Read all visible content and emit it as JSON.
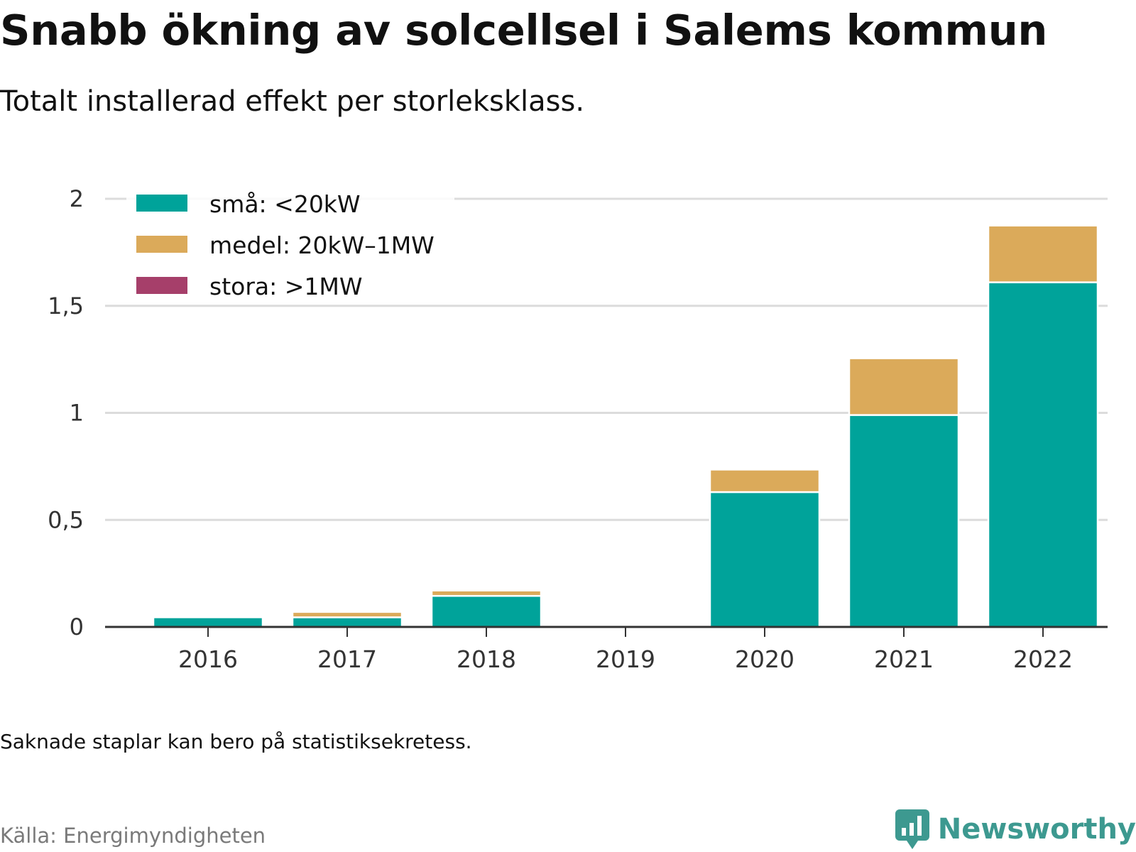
{
  "header": {
    "title": "Snabb ökning av solcellsel i Salems kommun",
    "subtitle": "Totalt installerad effekt per storleksklass."
  },
  "footer": {
    "note": "Saknade staplar kan bero på statistiksekretess.",
    "source": "Källa: Energimyndigheten",
    "brand": "Newsworthy",
    "brand_icon": "newsworthy-logo-icon"
  },
  "colors": {
    "small": "#00a39a",
    "medium": "#dbaa5a",
    "large": "#a63f6a",
    "brand": "#3d9990"
  },
  "chart_data": {
    "type": "bar",
    "stacked": true,
    "categories": [
      "2016",
      "2017",
      "2018",
      "2019",
      "2020",
      "2021",
      "2022"
    ],
    "series": [
      {
        "name": "små: <20kW",
        "values": [
          0.045,
          0.045,
          0.145,
          0,
          0.63,
          0.99,
          1.61
        ]
      },
      {
        "name": "medel: 20kW–1MW",
        "values": [
          0,
          0.025,
          0.025,
          0,
          0.105,
          0.265,
          0.265
        ]
      },
      {
        "name": "stora: >1MW",
        "values": [
          0,
          0,
          0,
          0,
          0,
          0,
          0
        ]
      }
    ],
    "yticks": [
      0,
      0.5,
      1,
      1.5,
      2
    ],
    "ytick_labels": [
      "0",
      "0,5",
      "1",
      "1,5",
      "2"
    ],
    "ylim": [
      0,
      2
    ],
    "grid": true,
    "legend": "top-left"
  }
}
